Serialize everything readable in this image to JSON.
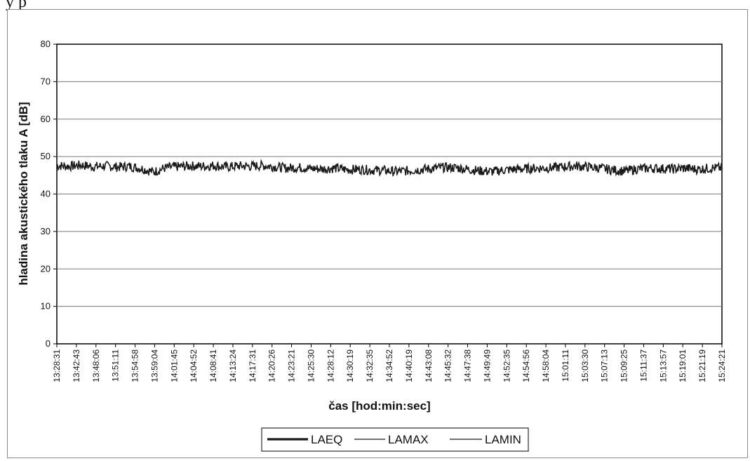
{
  "page": {
    "fragment_text": "y p"
  },
  "chart_data": {
    "type": "line",
    "title": "",
    "xlabel": "čas [hod:min:sec]",
    "ylabel": "hladina akustického tlaku A [dB]",
    "ylim": [
      0,
      80
    ],
    "yticks": [
      0,
      10,
      20,
      30,
      40,
      50,
      60,
      70,
      80
    ],
    "grid": true,
    "legend_position": "bottom",
    "x_tick_labels": [
      "13:28:31",
      "13:42:43",
      "13:48:06",
      "13:51:11",
      "13:54:58",
      "13:59:04",
      "14:01:45",
      "14:04:52",
      "14:08:41",
      "14:13:24",
      "14:17:31",
      "14:20:26",
      "14:23:21",
      "14:25:30",
      "14:28:12",
      "14:30:19",
      "14:32:35",
      "14:34:52",
      "14:40:19",
      "14:43:08",
      "14:45:32",
      "14:47:38",
      "14:49:49",
      "14:52:35",
      "14:54:56",
      "14:58:04",
      "15:01:11",
      "15:03:30",
      "15:07:13",
      "15:09:25",
      "15:11:37",
      "15:13:57",
      "15:19:01",
      "15:21:19",
      "15:24:21"
    ],
    "series": [
      {
        "name": "LAEQ",
        "color": "#1a1a1a",
        "values": [
          47.6,
          47.4,
          47.7,
          47.3,
          47.5,
          47.2,
          47.4,
          46.8,
          45.9,
          47.0,
          47.3,
          47.5,
          47.4,
          47.6,
          47.2,
          47.5,
          47.4,
          47.6,
          47.3,
          46.9,
          47.1,
          46.8,
          46.7,
          46.9,
          46.5,
          46.6,
          46.4,
          46.3,
          46.0,
          46.2,
          46.5,
          46.8,
          47.1,
          47.0,
          46.6,
          46.2,
          46.0,
          46.4,
          46.6,
          46.8,
          46.9,
          47.0,
          47.3,
          47.5,
          47.2,
          46.9,
          46.4,
          46.1,
          46.7,
          46.9,
          46.8,
          46.7,
          46.9,
          46.6,
          46.9,
          47.0
        ]
      },
      {
        "name": "LAMAX",
        "color": "#1a1a1a",
        "values": []
      },
      {
        "name": "LAMIN",
        "color": "#1a1a1a",
        "values": []
      }
    ]
  }
}
